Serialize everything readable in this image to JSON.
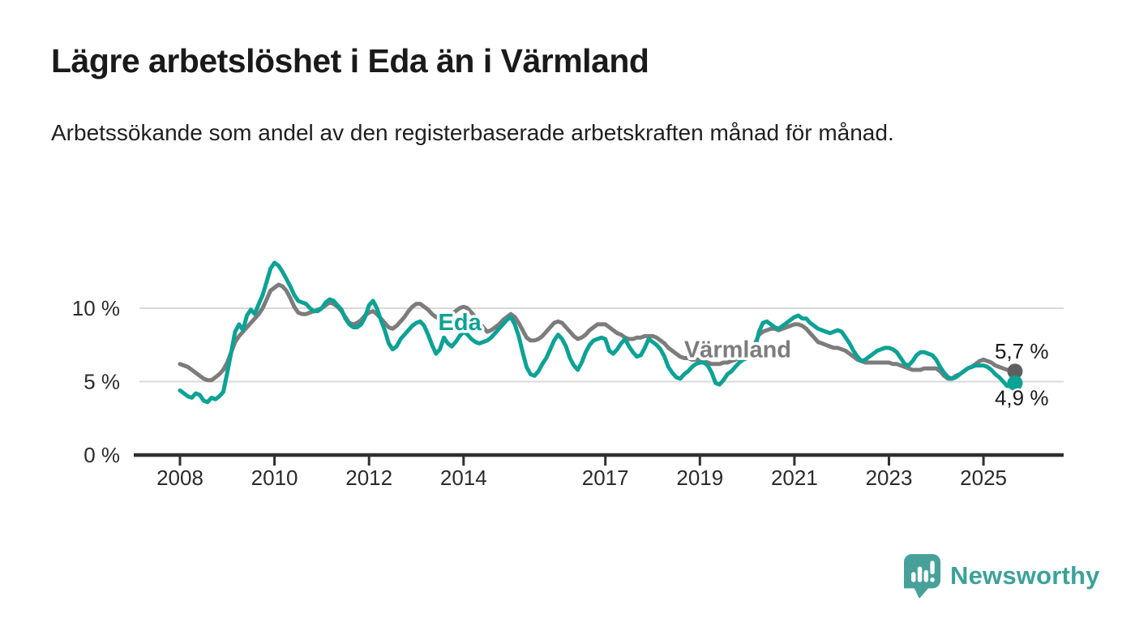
{
  "header": {
    "title": "Lägre arbetslöshet i Eda än i Värmland",
    "subtitle": "Arbetssökande som andel av den registerbaserade arbetskraften månad för månad."
  },
  "footer": {
    "brand": "Newsworthy"
  },
  "colors": {
    "eda": "#0ca295",
    "varmland": "#7c7c7c",
    "varmland_dot": "#5f5f5f",
    "grid": "#d9d9d9",
    "axis": "#2f2f2f",
    "tick_text": "#2b2b2b",
    "value_text": "#1a1a1a",
    "brand_teal": "#3ba29a"
  },
  "chart_data": {
    "type": "line",
    "title": "Lägre arbetslöshet i Eda än i Värmland",
    "x_start_year": 2008,
    "points_per_year": 12,
    "x_tick_years": [
      2008,
      2010,
      2012,
      2014,
      2017,
      2019,
      2021,
      2023,
      2025
    ],
    "y_ticks": [
      {
        "value": 0,
        "label": "0 %"
      },
      {
        "value": 5,
        "label": "5 %"
      },
      {
        "value": 10,
        "label": "10 %"
      }
    ],
    "ylim": [
      0,
      13.5
    ],
    "xlim": [
      2007.0,
      2026.7
    ],
    "grid": "horizontal",
    "legend_position": "inline",
    "series": [
      {
        "name": "Värmland",
        "color": "#7c7c7c",
        "dot_color": "#5f5f5f",
        "inline_label": {
          "text": "Värmland",
          "anchor_year": 2019.8,
          "anchor_value": 6.65
        },
        "end_label": {
          "text": "5,7 %",
          "dx": -25,
          "dy": -16
        },
        "values": [
          6.2,
          6.1,
          6.0,
          5.8,
          5.6,
          5.4,
          5.2,
          5.1,
          5.1,
          5.3,
          5.5,
          5.8,
          6.3,
          7.0,
          7.7,
          8.1,
          8.4,
          8.7,
          9.0,
          9.3,
          9.6,
          10.0,
          10.6,
          11.2,
          11.4,
          11.6,
          11.5,
          11.2,
          10.7,
          10.1,
          9.7,
          9.6,
          9.6,
          9.7,
          9.8,
          9.9,
          10.0,
          10.2,
          10.4,
          10.3,
          10.1,
          9.8,
          9.4,
          9.0,
          8.9,
          9.0,
          9.2,
          9.5,
          9.7,
          9.8,
          9.6,
          9.3,
          9.0,
          8.7,
          8.6,
          8.8,
          9.1,
          9.4,
          9.8,
          10.1,
          10.3,
          10.3,
          10.1,
          9.9,
          9.6,
          9.4,
          9.3,
          9.4,
          9.5,
          9.6,
          9.8,
          10.0,
          10.1,
          10.0,
          9.7,
          9.4,
          9.0,
          8.7,
          8.4,
          8.5,
          8.7,
          8.9,
          9.2,
          9.4,
          9.6,
          9.4,
          9.0,
          8.5,
          8.0,
          7.8,
          7.8,
          7.9,
          8.1,
          8.4,
          8.7,
          9.0,
          9.1,
          9.0,
          8.7,
          8.4,
          8.1,
          7.9,
          8.0,
          8.2,
          8.5,
          8.7,
          8.9,
          8.9,
          8.9,
          8.7,
          8.5,
          8.3,
          8.2,
          8.0,
          7.9,
          7.9,
          8.0,
          8.0,
          8.1,
          8.1,
          8.1,
          8.0,
          7.8,
          7.6,
          7.3,
          7.1,
          6.9,
          6.7,
          6.6,
          6.6,
          6.5,
          6.5,
          6.5,
          6.4,
          6.3,
          6.2,
          6.2,
          6.2,
          6.3,
          6.3,
          6.4,
          6.5,
          6.6,
          6.8,
          7.0,
          7.2,
          7.6,
          8.2,
          8.4,
          8.5,
          8.6,
          8.6,
          8.5,
          8.6,
          8.7,
          8.8,
          8.9,
          8.9,
          8.8,
          8.6,
          8.3,
          8.0,
          7.7,
          7.6,
          7.5,
          7.4,
          7.3,
          7.3,
          7.2,
          7.1,
          6.9,
          6.7,
          6.5,
          6.4,
          6.3,
          6.3,
          6.3,
          6.3,
          6.3,
          6.3,
          6.3,
          6.2,
          6.2,
          6.1,
          6.0,
          5.9,
          5.8,
          5.8,
          5.8,
          5.9,
          5.9,
          5.9,
          5.9,
          5.7,
          5.4,
          5.2,
          5.2,
          5.4,
          5.5,
          5.7,
          5.9,
          6.0,
          6.2,
          6.4,
          6.5,
          6.4,
          6.3,
          6.1,
          6.0,
          5.9,
          5.8,
          5.8,
          5.7
        ]
      },
      {
        "name": "Eda",
        "color": "#0ca295",
        "dot_color": "#0ca295",
        "inline_label": {
          "text": "Eda",
          "anchor_year": 2013.92,
          "anchor_value": 8.5
        },
        "end_label": {
          "text": "4,9 %",
          "dx": -25,
          "dy": 27
        },
        "values": [
          4.4,
          4.2,
          4.0,
          3.9,
          4.2,
          4.1,
          3.7,
          3.6,
          3.9,
          3.8,
          4.0,
          4.3,
          5.6,
          7.0,
          8.4,
          8.9,
          8.5,
          9.5,
          9.9,
          9.6,
          10.3,
          10.9,
          11.8,
          12.7,
          13.1,
          12.9,
          12.5,
          12.0,
          11.5,
          10.9,
          10.5,
          10.4,
          10.3,
          10.0,
          9.8,
          9.8,
          10.0,
          10.4,
          10.6,
          10.5,
          10.2,
          9.9,
          9.3,
          8.9,
          8.7,
          8.7,
          8.9,
          9.4,
          10.2,
          10.5,
          10.0,
          9.2,
          8.5,
          7.6,
          7.2,
          7.4,
          7.9,
          8.2,
          8.5,
          8.8,
          9.0,
          9.1,
          8.8,
          8.2,
          7.5,
          6.9,
          7.2,
          8.0,
          7.6,
          7.4,
          7.7,
          8.1,
          8.4,
          8.2,
          7.9,
          7.7,
          7.6,
          7.7,
          7.8,
          8.0,
          8.3,
          8.6,
          8.9,
          9.2,
          9.4,
          8.9,
          8.1,
          7.0,
          6.0,
          5.5,
          5.4,
          5.7,
          6.2,
          6.6,
          7.2,
          7.8,
          8.2,
          7.9,
          7.4,
          6.6,
          6.1,
          5.8,
          6.3,
          7.0,
          7.5,
          7.8,
          7.9,
          8.0,
          7.9,
          7.1,
          6.9,
          7.2,
          7.6,
          7.9,
          7.4,
          7.0,
          6.7,
          6.8,
          7.3,
          7.9,
          7.7,
          7.5,
          7.2,
          6.7,
          6.0,
          5.6,
          5.3,
          5.2,
          5.5,
          5.7,
          6.0,
          6.2,
          6.3,
          6.3,
          6.1,
          5.6,
          4.9,
          4.8,
          5.1,
          5.5,
          5.7,
          6.0,
          6.3,
          6.5,
          6.6,
          6.8,
          7.3,
          8.4,
          9.0,
          9.1,
          8.9,
          8.7,
          8.6,
          8.8,
          9.0,
          9.2,
          9.4,
          9.5,
          9.3,
          9.3,
          9.0,
          8.8,
          8.6,
          8.5,
          8.4,
          8.3,
          8.4,
          8.5,
          8.4,
          8.0,
          7.6,
          7.1,
          6.7,
          6.4,
          6.5,
          6.7,
          6.9,
          7.1,
          7.2,
          7.3,
          7.3,
          7.2,
          7.0,
          6.6,
          6.2,
          6.1,
          6.4,
          6.8,
          7.0,
          7.0,
          6.9,
          6.8,
          6.5,
          6.0,
          5.6,
          5.3,
          5.2,
          5.3,
          5.5,
          5.7,
          5.9,
          6.0,
          6.1,
          6.1,
          6.1,
          6.0,
          5.8,
          5.5,
          5.3,
          5.0,
          4.7,
          4.7,
          4.9
        ]
      }
    ]
  }
}
